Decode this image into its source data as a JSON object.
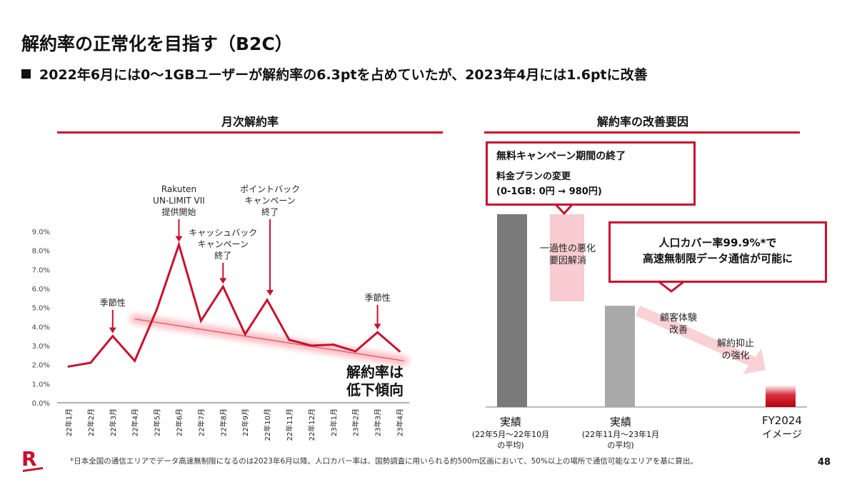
{
  "slide": {
    "title": "解約率の正常化を目指す（B2C）",
    "headline": "2022年6月には0～1GBユーザーが解約率の6.3ptを占めていたが、2023年4月には1.6ptに改善",
    "footnote": "*日本全国の通信エリアでデータ高速無制限になるのは2023年6月以降。人口カバー率は、国勢調査に用いられる約500m区画において、50%以上の場所で通信可能なエリアを基に算出。",
    "page_number": "48",
    "logo_letter": "R",
    "accent_color": "#c8102e"
  },
  "left_panel": {
    "title": "月次解約率",
    "annotations": [
      {
        "id": "seasonal-1",
        "text": [
          "季節性"
        ]
      },
      {
        "id": "unlimit",
        "text": [
          "Rakuten",
          "UN-LIMIT VII",
          "提供開始"
        ]
      },
      {
        "id": "cashback",
        "text": [
          "キャッシュバック",
          "キャンペーン",
          "終了"
        ]
      },
      {
        "id": "points",
        "text": [
          "ポイントバック",
          "キャンペーン",
          "終了"
        ]
      },
      {
        "id": "seasonal-2",
        "text": [
          "季節性"
        ]
      }
    ],
    "trend_label": [
      "解約率は",
      "低下傾向"
    ]
  },
  "chart_data": [
    {
      "type": "line",
      "title": "月次解約率",
      "categories": [
        "22年1月",
        "22年2月",
        "22年3月",
        "22年4月",
        "22年5月",
        "22年6月",
        "22年7月",
        "22年8月",
        "22年9月",
        "22年10月",
        "22年11月",
        "22年12月",
        "23年1月",
        "23年2月",
        "23年3月",
        "23年4月"
      ],
      "series": [
        {
          "values": [
            1.9,
            2.1,
            3.5,
            2.2,
            4.9,
            8.3,
            4.3,
            6.1,
            3.6,
            5.4,
            3.3,
            3.0,
            3.05,
            2.7,
            3.7,
            2.7
          ],
          "color": "#c8102e"
        }
      ],
      "trend_line": {
        "from": {
          "x": "22年4月",
          "y": 4.4
        },
        "to": {
          "x": "23年4月",
          "y": 2.2
        }
      },
      "ylim": [
        0,
        9
      ],
      "yticks": [
        "0.0%",
        "1.0%",
        "2.0%",
        "3.0%",
        "4.0%",
        "5.0%",
        "6.0%",
        "7.0%",
        "8.0%",
        "9.0%"
      ],
      "grid": false
    },
    {
      "type": "bar",
      "title": "解約率の改善要因",
      "categories": [
        "実績 (22年5月～22年10月の平均)",
        "実績 (22年11月～23年1月の平均)",
        "FY2024 イメージ"
      ],
      "values": [
        100,
        52.5,
        11.5
      ],
      "y_units": "relative (no axis printed)",
      "colors": [
        "#7a7a7a",
        "#a9a9a9",
        "#c8102e"
      ]
    }
  ],
  "right_panel": {
    "title": "解約率の改善要因",
    "box1": {
      "line1": "無料キャンペーン期間の終了",
      "line2": "料金プランの変更",
      "line3": "(0-1GB: 0円 → 980円)"
    },
    "box2": {
      "line1": "人口カバー率99.9%*で",
      "line2": "高速無制限データ通信が可能に"
    },
    "callout_one_time": [
      "一過性の悪化",
      "要因解消"
    ],
    "callout_cx": [
      "顧客体験",
      "改善"
    ],
    "callout_churn": [
      "解約抑止",
      "の強化"
    ],
    "bars": [
      {
        "label": "実績",
        "sub": [
          "(22年5月～22年10月",
          "の平均)"
        ]
      },
      {
        "label": "実績",
        "sub": [
          "(22年11月～23年1月",
          "の平均)"
        ]
      },
      {
        "label": "FY2024",
        "sub": [
          "イメージ"
        ]
      }
    ]
  }
}
